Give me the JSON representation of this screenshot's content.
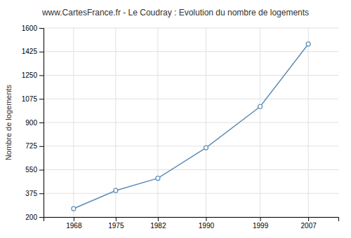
{
  "chart_data": {
    "type": "line",
    "title": "www.CartesFrance.fr - Le Coudray : Evolution du nombre de logements",
    "ylabel": "Nombre de logements",
    "x": [
      1968,
      1975,
      1982,
      1990,
      1999,
      2007
    ],
    "values": [
      262,
      396,
      487,
      713,
      1018,
      1481
    ],
    "xlim": [
      1963,
      2012
    ],
    "xticks": [
      1968,
      1975,
      1982,
      1990,
      1999,
      2007
    ],
    "ylim": [
      200,
      1600
    ],
    "yticks": [
      200,
      375,
      550,
      725,
      900,
      1075,
      1250,
      1425,
      1600
    ],
    "color": "#5b8db8",
    "marker": "circle",
    "grid": true
  }
}
